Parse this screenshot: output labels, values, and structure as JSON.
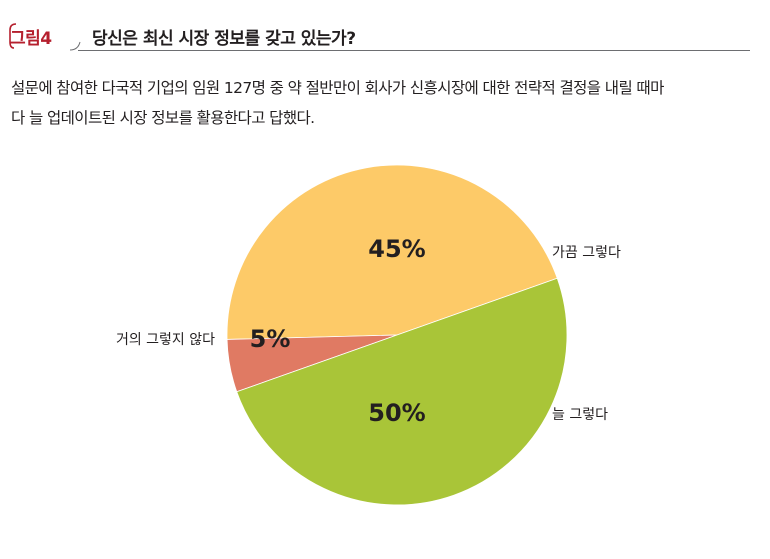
{
  "header": {
    "figure_tag": "그림4",
    "title": "당신은 최신 시장 정보를 갖고 있는가?"
  },
  "description": {
    "line1": "설문에 참여한 다국적 기업의 임원 127명 중 약 절반만이 회사가 신흥시장에 대한 전략적 결정을 내릴 때마",
    "line2": "다 늘 업데이트된 시장 정보를 활용한다고 답했다."
  },
  "colors": {
    "accent": "#b5202e",
    "often": "#fdca68",
    "rarely": "#e07a63",
    "always": "#a9c538"
  },
  "chart_data": {
    "type": "pie",
    "slices": [
      {
        "label": "가끔 그렇다",
        "value": 45,
        "display": "45%",
        "color": "#fdca68"
      },
      {
        "label": "거의 그렇지 않다",
        "value": 5,
        "display": "5%",
        "color": "#e07a63"
      },
      {
        "label": "늘 그렇다",
        "value": 50,
        "display": "50%",
        "color": "#a9c538"
      }
    ]
  }
}
